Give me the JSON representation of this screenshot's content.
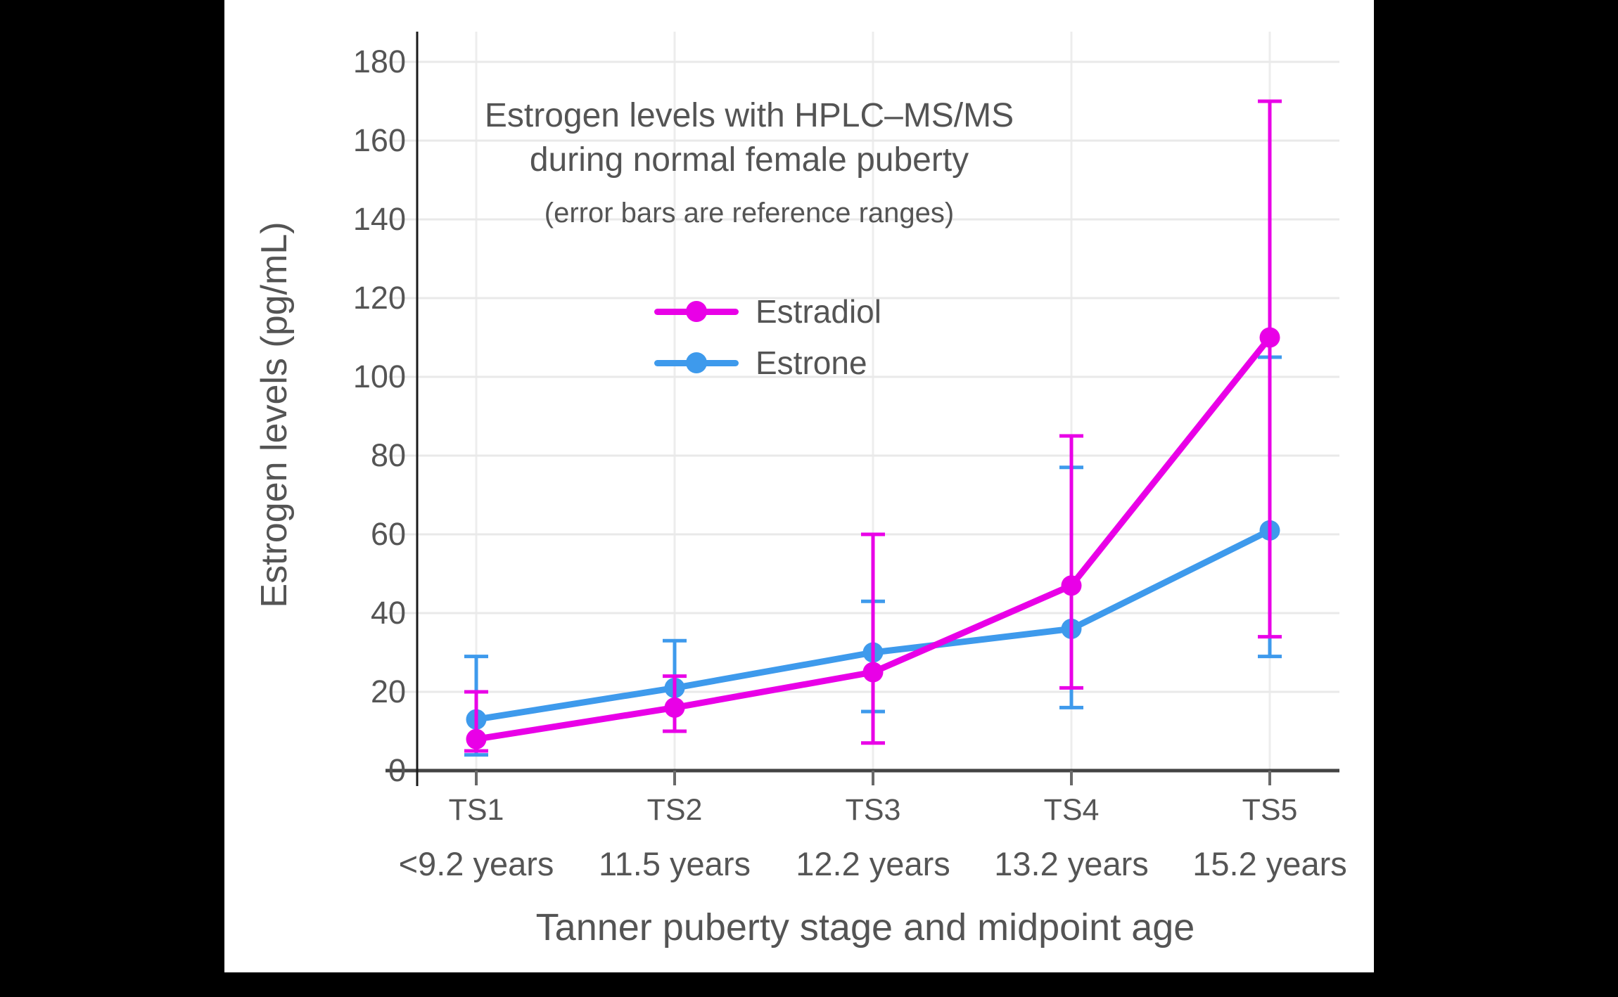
{
  "chart": {
    "title_line1": "Estrogen levels with HPLC–MS/MS",
    "title_line2": "during normal female puberty",
    "subtitle": "(error bars are reference ranges)"
  },
  "chart_data": {
    "type": "line",
    "title": "Estrogen levels with HPLC–MS/MS during normal female puberty",
    "subtitle": "(error bars are reference ranges)",
    "xlabel": "Tanner puberty stage and midpoint age",
    "ylabel": "Estrogen levels (pg/mL)",
    "ylim": [
      0,
      188
    ],
    "y_ticks": [
      0,
      20,
      40,
      60,
      80,
      100,
      120,
      140,
      160,
      180
    ],
    "categories": [
      "TS1",
      "TS2",
      "TS3",
      "TS4",
      "TS5"
    ],
    "category_ages": [
      "<9.2 years",
      "11.5 years",
      "12.2 years",
      "13.2 years",
      "15.2 years"
    ],
    "grid": true,
    "legend_position": "inside upper-center",
    "error_bars": "reference ranges",
    "series": [
      {
        "name": "Estradiol",
        "color": "#E900E7",
        "values": [
          8,
          16,
          25,
          47,
          110
        ],
        "range_low": [
          5,
          10,
          7,
          21,
          34
        ],
        "range_high": [
          20,
          24,
          60,
          85,
          170
        ]
      },
      {
        "name": "Estrone",
        "color": "#3E9AEC",
        "values": [
          13,
          21,
          30,
          36,
          61
        ],
        "range_low": [
          4,
          10,
          15,
          16,
          29
        ],
        "range_high": [
          29,
          33,
          43,
          77,
          105
        ]
      }
    ]
  }
}
